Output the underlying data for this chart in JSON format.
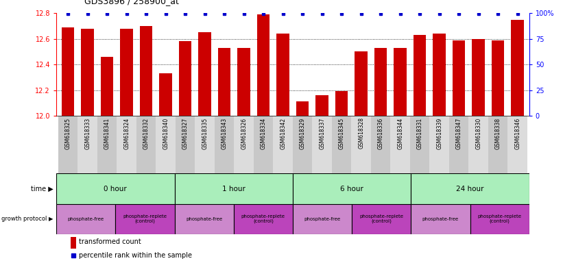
{
  "title": "GDS3896 / 258900_at",
  "samples": [
    "GSM618325",
    "GSM618333",
    "GSM618341",
    "GSM618324",
    "GSM618332",
    "GSM618340",
    "GSM618327",
    "GSM618335",
    "GSM618343",
    "GSM618326",
    "GSM618334",
    "GSM618342",
    "GSM618329",
    "GSM618337",
    "GSM618345",
    "GSM618328",
    "GSM618336",
    "GSM618344",
    "GSM618331",
    "GSM618339",
    "GSM618347",
    "GSM618330",
    "GSM618338",
    "GSM618346"
  ],
  "bar_values": [
    12.69,
    12.68,
    12.46,
    12.68,
    12.7,
    12.33,
    12.58,
    12.65,
    12.53,
    12.53,
    12.79,
    12.64,
    12.11,
    12.16,
    12.19,
    12.5,
    12.53,
    12.53,
    12.63,
    12.64,
    12.59,
    12.6,
    12.59,
    12.75
  ],
  "bar_color": "#CC0000",
  "percentile_color": "#0000CC",
  "y_min": 12.0,
  "y_max": 12.8,
  "y_ticks": [
    12.0,
    12.2,
    12.4,
    12.6,
    12.8
  ],
  "y_right_ticks": [
    0,
    25,
    50,
    75,
    100
  ],
  "y_right_labels": [
    "0",
    "25",
    "50",
    "75",
    "100%"
  ],
  "grid_values": [
    12.2,
    12.4,
    12.6
  ],
  "time_groups": [
    {
      "label": "0 hour",
      "start": 0,
      "end": 6
    },
    {
      "label": "1 hour",
      "start": 6,
      "end": 12
    },
    {
      "label": "6 hour",
      "start": 12,
      "end": 18
    },
    {
      "label": "24 hour",
      "start": 18,
      "end": 24
    }
  ],
  "protocol_groups": [
    {
      "label": "phosphate-free",
      "start": 0,
      "end": 3,
      "color": "#CC88CC"
    },
    {
      "label": "phosphate-replete\n(control)",
      "start": 3,
      "end": 6,
      "color": "#BB44BB"
    },
    {
      "label": "phosphate-free",
      "start": 6,
      "end": 9,
      "color": "#CC88CC"
    },
    {
      "label": "phosphate-replete\n(control)",
      "start": 9,
      "end": 12,
      "color": "#BB44BB"
    },
    {
      "label": "phosphate-free",
      "start": 12,
      "end": 15,
      "color": "#CC88CC"
    },
    {
      "label": "phosphate-replete\n(control)",
      "start": 15,
      "end": 18,
      "color": "#BB44BB"
    },
    {
      "label": "phosphate-free",
      "start": 18,
      "end": 21,
      "color": "#CC88CC"
    },
    {
      "label": "phosphate-replete\n(control)",
      "start": 21,
      "end": 24,
      "color": "#BB44BB"
    }
  ],
  "time_color": "#AAEEBB",
  "legend_bar_label": "transformed count",
  "legend_pct_label": "percentile rank within the sample",
  "n_samples": 24
}
